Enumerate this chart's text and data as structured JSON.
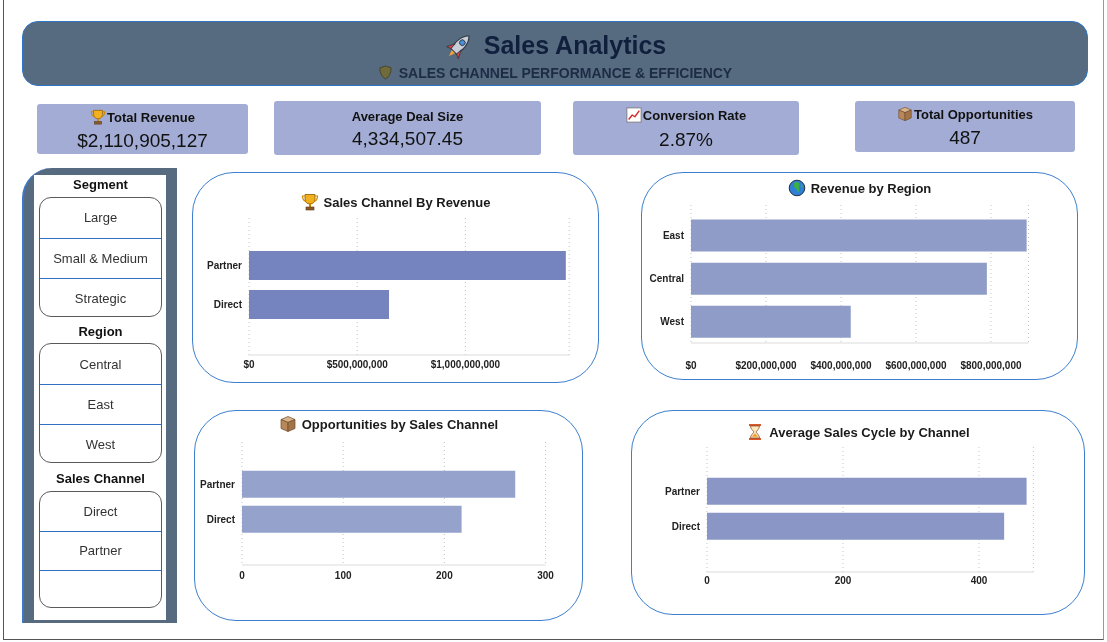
{
  "chart_data": [
    {
      "type": "other",
      "title": "Sales Analytics",
      "subtitle": "SALES CHANNEL PERFORMANCE & EFFICIENCY"
    },
    {
      "type": "other",
      "title": "Total Revenue",
      "annotations": [
        "$2,110,905,127"
      ]
    },
    {
      "type": "other",
      "title": "Average Deal Size",
      "annotations": [
        "4,334,507.45"
      ]
    },
    {
      "type": "other",
      "title": "Conversion Rate",
      "annotations": [
        "2.87%"
      ]
    },
    {
      "type": "other",
      "title": "Total Opportunities",
      "annotations": [
        "487"
      ]
    },
    {
      "type": "other",
      "title": "Segment",
      "annotations": [
        "Large",
        "Small & Medium",
        "Strategic"
      ]
    },
    {
      "type": "other",
      "title": "Region",
      "annotations": [
        "Central",
        "East",
        "West"
      ]
    },
    {
      "type": "other",
      "title": "Sales Channel",
      "annotations": [
        "Direct",
        "Partner"
      ]
    },
    {
      "type": "bar",
      "orientation": "horizontal",
      "title": "Sales Channel By Revenue",
      "categories": [
        "Partner",
        "Direct"
      ],
      "values": [
        1464000000,
        647000000
      ],
      "color": "#7584be",
      "xlim": [
        0,
        1480000000
      ],
      "xticks": [
        {
          "value": 0,
          "label": "$0"
        },
        {
          "value": 500000000,
          "label": "$500,000,000"
        },
        {
          "value": 1000000000,
          "label": "$1,000,000,000"
        }
      ],
      "grid": "x"
    },
    {
      "type": "bar",
      "orientation": "horizontal",
      "title": "Revenue by Region",
      "categories": [
        "East",
        "Central",
        "West"
      ],
      "values": [
        895000000,
        789000000,
        426000000
      ],
      "color": "#8f9cc8",
      "xlim": [
        0,
        900000000
      ],
      "xticks": [
        {
          "value": 0,
          "label": "$0"
        },
        {
          "value": 200000000,
          "label": "$200,000,000"
        },
        {
          "value": 400000000,
          "label": "$400,000,000"
        },
        {
          "value": 600000000,
          "label": "$600,000,000"
        },
        {
          "value": 800000000,
          "label": "$800,000,000"
        }
      ],
      "grid": "x"
    },
    {
      "type": "bar",
      "orientation": "horizontal",
      "title": "Opportunities by Sales Channel",
      "categories": [
        "Partner",
        "Direct"
      ],
      "values": [
        270,
        217
      ],
      "color": "#95a2cc",
      "xlim": [
        0,
        300
      ],
      "xticks": [
        0,
        100,
        200,
        300
      ],
      "grid": "x"
    },
    {
      "type": "bar",
      "orientation": "horizontal",
      "title": "Average Sales Cycle by Channel",
      "categories": [
        "Partner",
        "Direct"
      ],
      "values": [
        470,
        437
      ],
      "color": "#8a97c6",
      "xlim": [
        0,
        480
      ],
      "xticks": [
        0,
        200,
        400
      ],
      "grid": "x"
    }
  ]
}
